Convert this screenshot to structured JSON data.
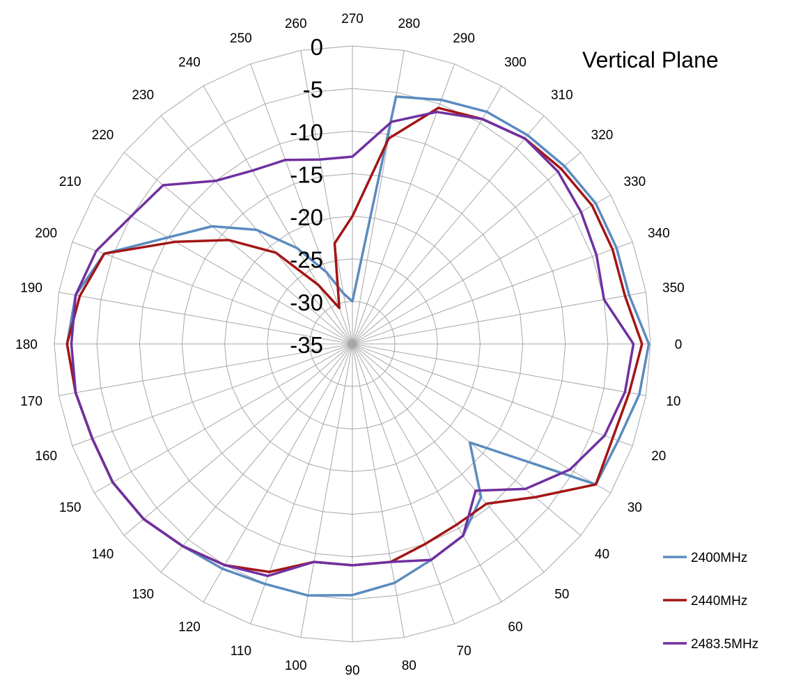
{
  "chart_data": {
    "type": "radar",
    "title": "Vertical Plane",
    "angles": [
      0,
      10,
      20,
      30,
      40,
      50,
      60,
      70,
      80,
      90,
      100,
      110,
      120,
      130,
      140,
      150,
      160,
      170,
      180,
      190,
      200,
      210,
      220,
      230,
      240,
      250,
      260,
      270,
      280,
      290,
      300,
      310,
      320,
      330,
      340,
      350
    ],
    "radial_ticks": [
      0,
      -5,
      -10,
      -15,
      -20,
      -25,
      -30,
      -35
    ],
    "rlim": [
      -35,
      0
    ],
    "grid": true,
    "legend_position": "bottom-right",
    "series": [
      {
        "name": "2400MHz",
        "color": "#5b8bbf",
        "values": [
          -0.2,
          -0.8,
          -1.8,
          -2,
          -17,
          -11.5,
          -9,
          -8,
          -6.5,
          -5.5,
          -5,
          -5,
          -4.5,
          -4,
          -3,
          -2.5,
          -2.5,
          -2,
          -1.5,
          -2,
          -4,
          -10,
          -13.5,
          -17.5,
          -22,
          -26,
          -29,
          -30,
          -5.5,
          -4.5,
          -3.5,
          -3,
          -2.5,
          -2,
          -2,
          -2
        ]
      },
      {
        "name": "2440MHz",
        "color": "#a31515",
        "values": [
          -1,
          -2,
          -2.5,
          -2,
          -7,
          -10.5,
          -10.5,
          -10,
          -9,
          -9,
          -9,
          -6.5,
          -5,
          -4,
          -3,
          -2.5,
          -2.5,
          -2,
          -1.5,
          -2.5,
          -4,
          -11,
          -16,
          -21,
          -27,
          -30.5,
          -23,
          -20,
          -10.5,
          -5.5,
          -4.5,
          -3.5,
          -3,
          -2.5,
          -2.5,
          -2.5
        ]
      },
      {
        "name": "2483.5MHz",
        "color": "#7030a0",
        "values": [
          -2,
          -2.5,
          -3.5,
          -5.5,
          -8.5,
          -12.5,
          -9,
          -8,
          -9,
          -9,
          -9,
          -6,
          -5,
          -4,
          -3,
          -2.5,
          -2.5,
          -2,
          -2,
          -2,
          -3,
          -5,
          -6,
          -10,
          -11.5,
          -12,
          -13,
          -13,
          -8.5,
          -6,
          -4.5,
          -3.5,
          -3.5,
          -4,
          -4.5,
          -5
        ]
      }
    ]
  }
}
